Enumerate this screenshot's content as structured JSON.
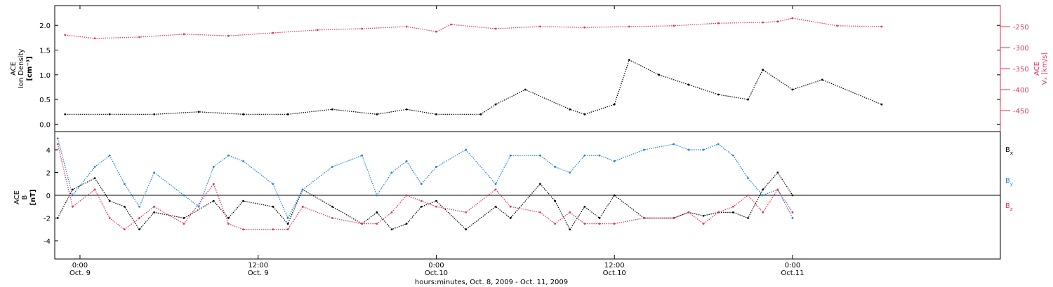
{
  "chart_data": [
    {
      "type": "scatter",
      "panel": "top",
      "ylabel_left": [
        "ACE",
        "Ion Density",
        "[cm⁻³]"
      ],
      "ylabel_right": [
        "ACE",
        "Vₓ [km/s]"
      ],
      "ylim_left": [
        -0.15,
        2.4
      ],
      "yticks_left": [
        "0.0",
        "0.5",
        "1.0",
        "1.5",
        "2.0"
      ],
      "yticks_left_values": [
        0.0,
        0.5,
        1.0,
        1.5,
        2.0
      ],
      "ylim_right": [
        -200,
        -500
      ],
      "yticks_right": [
        "-250",
        "-300",
        "-350",
        "-400",
        "-450"
      ],
      "yticks_right_values": [
        -250,
        -300,
        -350,
        -400,
        -450
      ],
      "grid": false,
      "series": [
        {
          "color": "#000000",
          "axis": "left",
          "x_hours": [
            -1,
            2,
            5,
            8,
            11,
            14,
            17,
            20,
            22,
            24,
            27,
            28,
            30,
            33,
            34,
            36,
            37,
            39,
            41,
            43,
            45,
            46,
            48,
            50,
            54
          ],
          "y": [
            0.2,
            0.2,
            0.2,
            0.25,
            0.2,
            0.2,
            0.3,
            0.2,
            0.3,
            0.2,
            0.2,
            0.4,
            0.7,
            0.3,
            0.2,
            0.4,
            1.3,
            1.0,
            0.8,
            0.6,
            0.5,
            1.1,
            0.7,
            0.9,
            0.4
          ]
        },
        {
          "color": "#e0325a",
          "axis": "right",
          "x_hours": [
            -1,
            1,
            4,
            7,
            10,
            13,
            16,
            19,
            22,
            24,
            25,
            28,
            31,
            34,
            37,
            40,
            43,
            46,
            47,
            48,
            51,
            54
          ],
          "y": [
            -270,
            -278,
            -275,
            -268,
            -272,
            -265,
            -258,
            -255,
            -250,
            -262,
            -245,
            -255,
            -250,
            -252,
            -250,
            -248,
            -242,
            -240,
            -238,
            -230,
            -248,
            -250
          ]
        }
      ]
    },
    {
      "type": "scatter",
      "panel": "bottom",
      "ylabel": [
        "ACE",
        "B",
        "[nT]"
      ],
      "ylim": [
        -5.6,
        5.6
      ],
      "yticks": [
        "4",
        "2",
        "0",
        "-2",
        "-4"
      ],
      "yticks_values": [
        4,
        2,
        0,
        -2,
        -4
      ],
      "xlabel": "hours:minutes, Oct. 8, 2009 - Oct. 11, 2009",
      "xlim_hours": [
        -1.7,
        62
      ],
      "xticks": [
        {
          "t": 0,
          "time": "0:00",
          "date": "Oct. 9"
        },
        {
          "t": 12,
          "time": "12:00",
          "date": "Oct. 9"
        },
        {
          "t": 24,
          "time": "0:00",
          "date": "Oct.10"
        },
        {
          "t": 36,
          "time": "12:00",
          "date": "Oct.10"
        },
        {
          "t": 48,
          "time": "0:00",
          "date": "Oct.11"
        }
      ],
      "grid": false,
      "series": [
        {
          "name": "Bx",
          "label_main": "B",
          "label_sub": "x",
          "color": "#000000",
          "x_hours": [
            -1.5,
            -0.5,
            1,
            2,
            3,
            4,
            5,
            7,
            9,
            10,
            11,
            13,
            14,
            15,
            17,
            19,
            20,
            21,
            22,
            23,
            24,
            26,
            28,
            29,
            31,
            32,
            33,
            34,
            35,
            36,
            38,
            40,
            41,
            42,
            43,
            44,
            45,
            46,
            47,
            48
          ],
          "y": [
            -2,
            0.5,
            1.5,
            -0.5,
            -1,
            -3,
            -1.5,
            -2,
            -0.5,
            -2,
            -0.5,
            -1,
            -2.5,
            0.5,
            -1,
            -2.5,
            -1.5,
            -3,
            -2.5,
            -1,
            -0.5,
            -3,
            -1,
            -2,
            1,
            -0.5,
            -3,
            -1,
            -2,
            0,
            -2,
            -2,
            -1.5,
            -1.8,
            -1.5,
            -1.5,
            -2,
            0.5,
            2,
            0
          ]
        },
        {
          "name": "By",
          "label_main": "B",
          "label_sub": "y",
          "color": "#1e7fd8",
          "x_hours": [
            -1.5,
            -0.5,
            1,
            2,
            3,
            4,
            5,
            7,
            8,
            9,
            10,
            11,
            13,
            14,
            15,
            17,
            19,
            20,
            21,
            22,
            23,
            24,
            26,
            28,
            29,
            31,
            32,
            33,
            34,
            35,
            36,
            38,
            40,
            41,
            42,
            43,
            44,
            45,
            46,
            47,
            48
          ],
          "y": [
            5,
            0,
            2.5,
            3.5,
            1,
            -1,
            2,
            0,
            -1,
            2.5,
            3.5,
            3,
            1,
            -2,
            0.5,
            2.5,
            3.5,
            0,
            2,
            3,
            1,
            2.5,
            4,
            1,
            3.5,
            3.5,
            2.5,
            2,
            3.5,
            3.5,
            3,
            4,
            4.5,
            4,
            4,
            4.5,
            3.5,
            1.5,
            0,
            0.5,
            -2
          ]
        },
        {
          "name": "Bz",
          "label_main": "B",
          "label_sub": "z",
          "color": "#e0325a",
          "x_hours": [
            -1.5,
            -0.5,
            1,
            2,
            3,
            4,
            5,
            7,
            9,
            10,
            11,
            13,
            14,
            15,
            17,
            19,
            20,
            21,
            22,
            23,
            24,
            26,
            28,
            29,
            31,
            32,
            33,
            34,
            35,
            36,
            38,
            40,
            41,
            42,
            43,
            44,
            45,
            46,
            47,
            48
          ],
          "y": [
            4.5,
            -1,
            0.5,
            -2,
            -3,
            -2,
            -1,
            -2.5,
            1,
            -2.5,
            -3,
            -3,
            -3,
            -1,
            -2,
            -2.5,
            -2.5,
            -1.5,
            0,
            -0.5,
            -1,
            -1.5,
            0.5,
            -1,
            -1.5,
            -2.5,
            -1.5,
            -2.5,
            -2.5,
            -2.5,
            -2,
            -2,
            -1.5,
            -2.5,
            -1.5,
            -1,
            0,
            -1.5,
            0.5,
            -1.5
          ]
        }
      ]
    }
  ]
}
